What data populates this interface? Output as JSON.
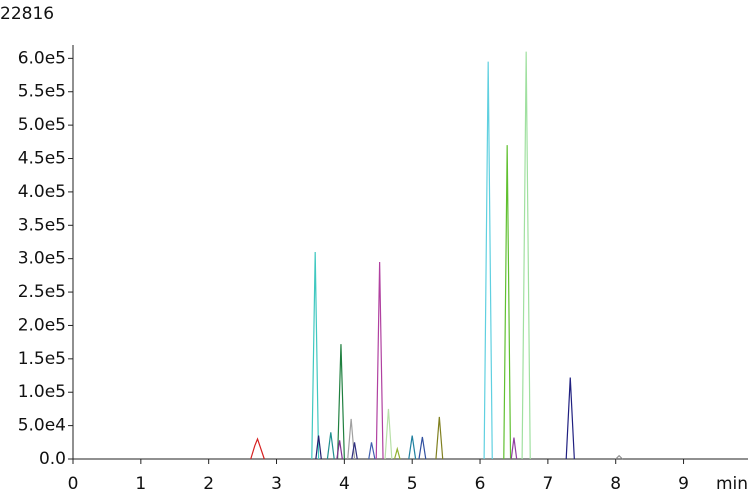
{
  "chart_data": {
    "type": "line",
    "title": "22816",
    "x_label": "min",
    "xlim": [
      0,
      9.95
    ],
    "xticks": [
      0,
      1,
      2,
      3,
      4,
      5,
      6,
      7,
      8,
      9
    ],
    "ylim": [
      0,
      620000
    ],
    "yticks": [
      {
        "value": 0,
        "label": "0.0"
      },
      {
        "value": 50000,
        "label": "5.0e4"
      },
      {
        "value": 100000,
        "label": "1.0e5"
      },
      {
        "value": 150000,
        "label": "1.5e5"
      },
      {
        "value": 200000,
        "label": "2.0e5"
      },
      {
        "value": 250000,
        "label": "2.5e5"
      },
      {
        "value": 300000,
        "label": "3.0e5"
      },
      {
        "value": 350000,
        "label": "3.5e5"
      },
      {
        "value": 400000,
        "label": "4.0e5"
      },
      {
        "value": 450000,
        "label": "4.5e5"
      },
      {
        "value": 500000,
        "label": "5.0e5"
      },
      {
        "value": 550000,
        "label": "5.5e5"
      },
      {
        "value": 600000,
        "label": "6.0e5"
      }
    ],
    "series": [
      {
        "color": "#d62020",
        "x": [
          2.62,
          2.68,
          2.72,
          2.76,
          2.82
        ],
        "values": [
          0,
          20000,
          30000,
          18000,
          0
        ]
      },
      {
        "color": "#40c8c0",
        "x": [
          3.52,
          3.57,
          3.62
        ],
        "values": [
          0,
          310000,
          0
        ]
      },
      {
        "color": "#202070",
        "x": [
          3.58,
          3.62,
          3.66
        ],
        "values": [
          0,
          35000,
          0
        ]
      },
      {
        "color": "#209090",
        "x": [
          3.75,
          3.8,
          3.85
        ],
        "values": [
          0,
          40000,
          0
        ]
      },
      {
        "color": "#208040",
        "x": [
          3.9,
          3.95,
          4.0
        ],
        "values": [
          0,
          172000,
          0
        ]
      },
      {
        "color": "#803090",
        "x": [
          3.89,
          3.93,
          3.97
        ],
        "values": [
          0,
          28000,
          0
        ]
      },
      {
        "color": "#a0a0a0",
        "x": [
          4.05,
          4.1,
          4.15
        ],
        "values": [
          0,
          60000,
          0
        ]
      },
      {
        "color": "#303080",
        "x": [
          4.11,
          4.15,
          4.19
        ],
        "values": [
          0,
          25000,
          0
        ]
      },
      {
        "color": "#4060b0",
        "x": [
          4.36,
          4.4,
          4.45
        ],
        "values": [
          0,
          25000,
          0
        ]
      },
      {
        "color": "#b040a0",
        "x": [
          4.47,
          4.52,
          4.57
        ],
        "values": [
          0,
          295000,
          0
        ]
      },
      {
        "color": "#b8e0a8",
        "x": [
          4.6,
          4.65,
          4.7
        ],
        "values": [
          0,
          75000,
          0
        ]
      },
      {
        "color": "#90b030",
        "x": [
          4.74,
          4.78,
          4.82
        ],
        "values": [
          0,
          15000,
          0
        ]
      },
      {
        "color": "#2080a0",
        "x": [
          4.95,
          5.0,
          5.05
        ],
        "values": [
          0,
          35000,
          0
        ]
      },
      {
        "color": "#3050a0",
        "x": [
          5.1,
          5.15,
          5.2
        ],
        "values": [
          0,
          33000,
          0
        ]
      },
      {
        "color": "#808020",
        "x": [
          5.35,
          5.4,
          5.45
        ],
        "values": [
          0,
          63000,
          0
        ]
      },
      {
        "color": "#60d0e0",
        "x": [
          6.06,
          6.12,
          6.18
        ],
        "values": [
          0,
          595000,
          0
        ]
      },
      {
        "color": "#60c030",
        "x": [
          6.35,
          6.4,
          6.45
        ],
        "values": [
          0,
          470000,
          0
        ]
      },
      {
        "color": "#9040a0",
        "x": [
          6.46,
          6.5,
          6.54
        ],
        "values": [
          0,
          32000,
          0
        ]
      },
      {
        "color": "#a0e0a0",
        "x": [
          6.62,
          6.68,
          6.74
        ],
        "values": [
          0,
          610000,
          0
        ]
      },
      {
        "color": "#202080",
        "x": [
          7.27,
          7.33,
          7.39
        ],
        "values": [
          0,
          122000,
          0
        ]
      },
      {
        "color": "#909090",
        "x": [
          8.0,
          8.05,
          8.1
        ],
        "values": [
          0,
          5000,
          0
        ]
      }
    ]
  }
}
